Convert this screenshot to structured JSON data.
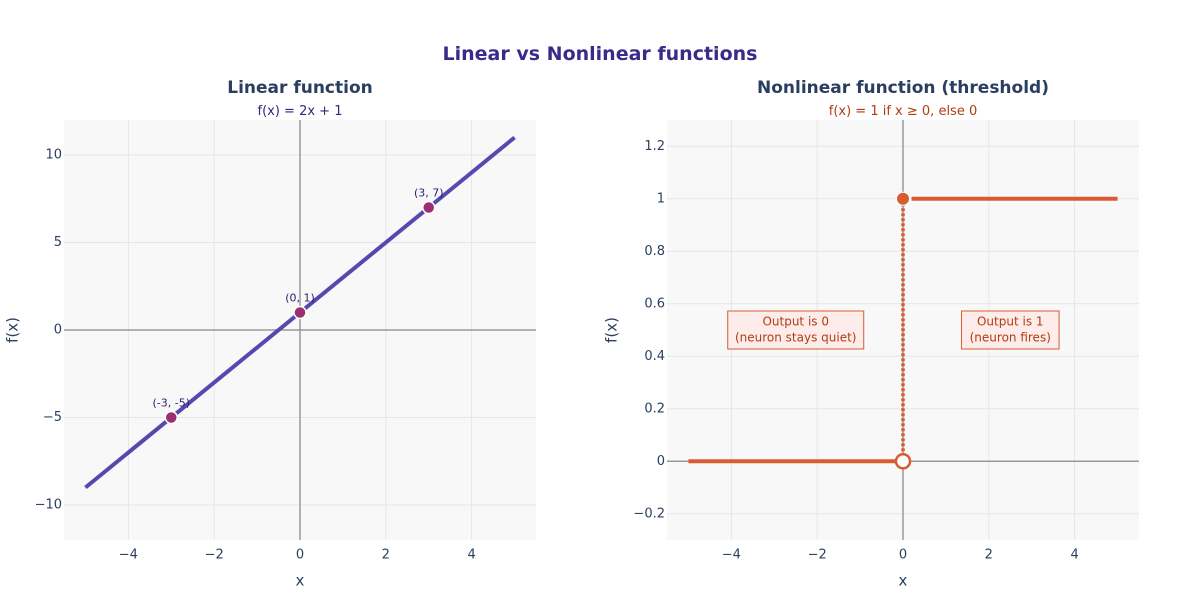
{
  "title": "Linear vs Nonlinear functions",
  "colors": {
    "title": "#3b2a8a",
    "linear_line": "#5549b0",
    "linear_markers": "#9b2f72",
    "linear_subtitle": "#2d2a7a",
    "threshold_line": "#d95b31",
    "threshold_subtitle": "#b23c12",
    "annotation_fill": "#fdecea",
    "annotation_text": "#b23c12",
    "plot_bg": "#f8f8f8",
    "grid": "#e6e6e6",
    "zero_line": "#999999"
  },
  "chart_data": [
    {
      "type": "line",
      "title": "Linear function",
      "subtitle": "f(x) = 2x + 1",
      "xlabel": "x",
      "ylabel": "f(x)",
      "xlim": [
        -5.5,
        5.5
      ],
      "ylim": [
        -12,
        12
      ],
      "xticks": [
        -4,
        -2,
        0,
        2,
        4
      ],
      "yticks": [
        -10,
        -5,
        0,
        5,
        10
      ],
      "tick_labels_x": [
        "−4",
        "−2",
        "0",
        "2",
        "4"
      ],
      "tick_labels_y": [
        "−10",
        "−5",
        "0",
        "5",
        "10"
      ],
      "grid": true,
      "series": [
        {
          "x": [
            -5,
            5
          ],
          "y": [
            -9,
            11
          ]
        }
      ],
      "points": [
        {
          "x": -3,
          "y": -5,
          "label": "(-3, -5)"
        },
        {
          "x": 0,
          "y": 1,
          "label": "(0, 1)"
        },
        {
          "x": 3,
          "y": 7,
          "label": "(3, 7)"
        }
      ]
    },
    {
      "type": "line",
      "title": "Nonlinear function (threshold)",
      "subtitle": "f(x) = 1 if x ≥ 0, else 0",
      "xlabel": "x",
      "ylabel": "f(x)",
      "xlim": [
        -5.5,
        5.5
      ],
      "ylim": [
        -0.3,
        1.3
      ],
      "xticks": [
        -4,
        -2,
        0,
        2,
        4
      ],
      "yticks": [
        -0.2,
        0,
        0.2,
        0.4,
        0.6,
        0.8,
        1,
        1.2
      ],
      "tick_labels_x": [
        "−4",
        "−2",
        "0",
        "2",
        "4"
      ],
      "tick_labels_y": [
        "−0.2",
        "0",
        "0.2",
        "0.4",
        "0.6",
        "0.8",
        "1",
        "1.2"
      ],
      "grid": true,
      "series": [
        {
          "x": [
            -5,
            0
          ],
          "y": [
            0,
            0
          ]
        },
        {
          "x": [
            0.2,
            5
          ],
          "y": [
            1,
            1
          ]
        }
      ],
      "jump": {
        "x": 0,
        "y_from": 0,
        "y_to": 1
      },
      "points": [
        {
          "x": 0,
          "y": 1,
          "style": "filled"
        },
        {
          "x": 0,
          "y": 0,
          "style": "open"
        }
      ],
      "annotations": [
        {
          "x": -2.5,
          "y": 0.5,
          "lines": [
            "Output is 0",
            "(neuron stays quiet)"
          ]
        },
        {
          "x": 2.5,
          "y": 0.5,
          "lines": [
            "Output is 1",
            "(neuron fires)"
          ]
        }
      ]
    }
  ]
}
